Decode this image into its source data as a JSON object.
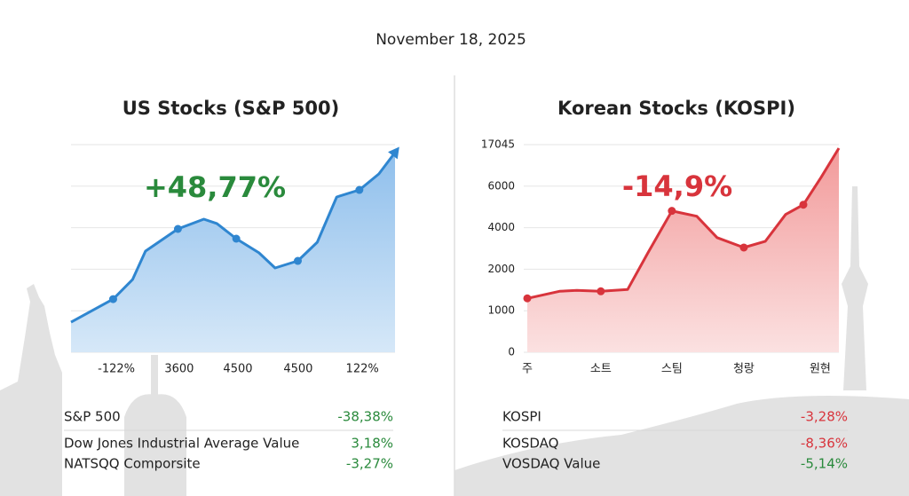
{
  "date": "November 18, 2025",
  "chart_data": [
    {
      "type": "area",
      "title": "US Stocks (S&P 500)",
      "annotation": "+48,77%",
      "annotation_color": "#2a8a3c",
      "color": "#2f86d0",
      "fill": "#a9cdf0",
      "grid": true,
      "end_arrow": true,
      "markers": [
        1,
        4,
        7,
        10,
        13
      ],
      "x": [
        0,
        13,
        19,
        23,
        33,
        41,
        45,
        51,
        58,
        63,
        70,
        76,
        82,
        89,
        95,
        100
      ],
      "values": [
        14.5,
        25.6,
        35,
        48.7,
        59.4,
        64.1,
        62,
        54.7,
        47.9,
        40.6,
        44,
        53,
        74.8,
        78.2,
        85.9,
        96.2
      ],
      "xlim": [
        0,
        100
      ],
      "ylim": [
        0,
        100
      ],
      "xticks": [
        {
          "value": 14,
          "label": "-122%"
        },
        {
          "value": 33.4,
          "label": "3600"
        },
        {
          "value": 51.5,
          "label": "4500"
        },
        {
          "value": 70.1,
          "label": "4500"
        },
        {
          "value": 89.9,
          "label": "122%"
        }
      ]
    },
    {
      "type": "area",
      "title": "Korean Stocks (KOSPI)",
      "annotation": "-14,9%",
      "annotation_color": "#d8343c",
      "color": "#d8343c",
      "fill": "#f6b9b9",
      "grid": true,
      "end_arrow": false,
      "markers": [
        0,
        3,
        6,
        9,
        12
      ],
      "y_scale": "tick-spaced",
      "x": [
        0,
        10.3,
        15.9,
        23.6,
        32.2,
        38.7,
        46.4,
        54.4,
        60.9,
        69.5,
        76.4,
        82.9,
        88.6,
        94.3,
        100
      ],
      "values": [
        1298,
        1468,
        1489,
        1468,
        1511,
        2783,
        4809,
        4553,
        3522,
        3043,
        3348,
        4638,
        5106,
        8350,
        16105
      ],
      "xlim": [
        0,
        100
      ],
      "ylim": [
        0,
        17045
      ],
      "yticks": [
        0,
        1000,
        2000,
        4000,
        6000,
        17045
      ],
      "xticks": [
        {
          "value": 0,
          "label": "주"
        },
        {
          "value": 23.6,
          "label": "소트"
        },
        {
          "value": 46.4,
          "label": "스팀"
        },
        {
          "value": 69.5,
          "label": "청랑"
        },
        {
          "value": 94,
          "label": "원현"
        }
      ]
    }
  ],
  "tables": [
    {
      "rows": [
        {
          "name": "S&P 500",
          "value": "-38,38%",
          "color": "#2a8a3c"
        },
        {
          "name": "Dow Jones Industrial Average Value",
          "value": "3,18%",
          "color": "#2a8a3c"
        },
        {
          "name": "NATSQQ Comporsite",
          "value": "-3,27%",
          "color": "#2a8a3c"
        }
      ]
    },
    {
      "rows": [
        {
          "name": "KOSPI",
          "value": "-3,28%",
          "color": "#d8343c"
        },
        {
          "name": "KOSDAQ",
          "value": "-8,36%",
          "color": "#d8343c"
        },
        {
          "name": "VOSDAQ Value",
          "value": "-5,14%",
          "color": "#2a8a3c"
        }
      ]
    }
  ]
}
